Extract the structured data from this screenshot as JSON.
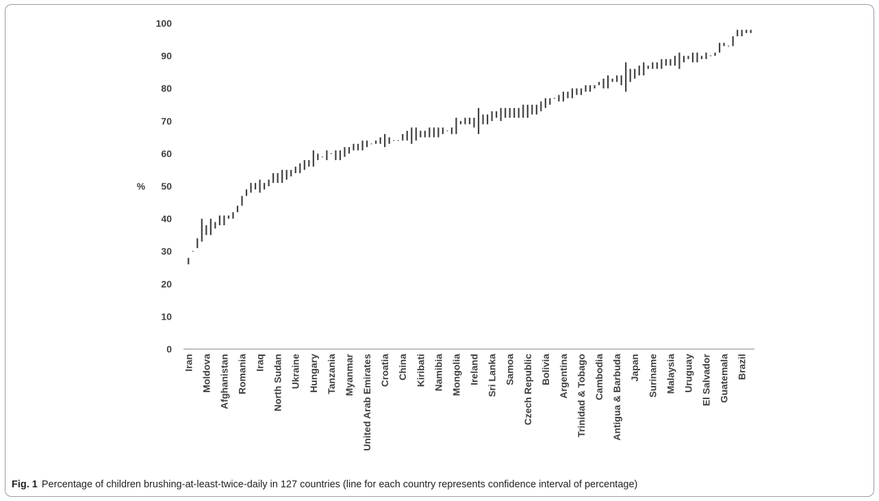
{
  "figure": {
    "label": "Fig. 1",
    "caption": "Percentage of children brushing-at-least-twice-daily in 127 countries (line for each country represents confidence interval of percentage)"
  },
  "colors": {
    "bar": "#404040",
    "text": "#404040"
  },
  "chart_data": {
    "type": "bar",
    "subtype": "range (confidence interval per country)",
    "xlabel": "",
    "ylabel": "%",
    "ylim": [
      0,
      100
    ],
    "yticks": [
      0,
      10,
      20,
      30,
      40,
      50,
      60,
      70,
      80,
      90,
      100
    ],
    "grid": false,
    "legend": "none",
    "n_countries": 127,
    "label_every": 4,
    "x_labels": [
      "Iran",
      "Moldova",
      "Afghanistan",
      "Romania",
      "Iraq",
      "North Sudan",
      "Ukraine",
      "Hungary",
      "Tanzania",
      "Myanmar",
      "United Arab Emirates",
      "Croatia",
      "China",
      "Kiribati",
      "Namibia",
      "Mongolia",
      "Ireland",
      "Sri Lanka",
      "Samoa",
      "Czech Republic",
      "Bolivia",
      "Argentina",
      "Trinidad & Tobago",
      "Cambodia",
      "Antigua & Barbuda",
      "Japan",
      "Suriname",
      "Malaysia",
      "Uruguay",
      "El Salvador",
      "Guatemala",
      "Brazil"
    ],
    "intervals": [
      [
        26,
        28
      ],
      [
        30,
        30
      ],
      [
        31,
        34
      ],
      [
        33,
        40
      ],
      [
        35,
        38
      ],
      [
        35,
        40
      ],
      [
        37,
        39
      ],
      [
        38,
        41
      ],
      [
        38,
        41
      ],
      [
        40,
        41
      ],
      [
        40,
        42
      ],
      [
        42,
        44
      ],
      [
        44,
        47
      ],
      [
        47,
        49
      ],
      [
        48,
        51
      ],
      [
        49,
        51
      ],
      [
        48,
        52
      ],
      [
        49,
        51
      ],
      [
        50,
        52
      ],
      [
        51,
        54
      ],
      [
        51,
        54
      ],
      [
        51,
        55
      ],
      [
        52,
        55
      ],
      [
        53,
        55
      ],
      [
        54,
        56
      ],
      [
        54,
        57
      ],
      [
        55,
        58
      ],
      [
        56,
        58
      ],
      [
        56,
        61
      ],
      [
        58,
        60
      ],
      [
        59,
        59
      ],
      [
        58,
        61
      ],
      [
        60,
        60
      ],
      [
        58,
        61
      ],
      [
        58,
        61
      ],
      [
        59,
        62
      ],
      [
        60,
        62
      ],
      [
        61,
        63
      ],
      [
        61,
        63
      ],
      [
        61,
        64
      ],
      [
        62,
        64
      ],
      [
        63,
        63
      ],
      [
        63,
        64
      ],
      [
        63,
        65
      ],
      [
        62,
        66
      ],
      [
        63,
        65
      ],
      [
        64,
        64
      ],
      [
        64,
        64
      ],
      [
        64,
        66
      ],
      [
        64,
        67
      ],
      [
        63,
        68
      ],
      [
        64,
        68
      ],
      [
        65,
        67
      ],
      [
        65,
        67
      ],
      [
        65,
        68
      ],
      [
        65,
        68
      ],
      [
        65,
        68
      ],
      [
        66,
        68
      ],
      [
        67,
        67
      ],
      [
        66,
        68
      ],
      [
        66,
        71
      ],
      [
        69,
        70
      ],
      [
        69,
        71
      ],
      [
        69,
        71
      ],
      [
        68,
        71
      ],
      [
        66,
        74
      ],
      [
        69,
        72
      ],
      [
        69,
        72
      ],
      [
        70,
        73
      ],
      [
        71,
        73
      ],
      [
        70,
        74
      ],
      [
        71,
        74
      ],
      [
        71,
        74
      ],
      [
        71,
        74
      ],
      [
        71,
        74
      ],
      [
        71,
        75
      ],
      [
        71,
        75
      ],
      [
        72,
        75
      ],
      [
        72,
        75
      ],
      [
        73,
        76
      ],
      [
        74,
        77
      ],
      [
        75,
        77
      ],
      [
        77,
        77
      ],
      [
        76,
        78
      ],
      [
        76,
        79
      ],
      [
        77,
        79
      ],
      [
        77,
        80
      ],
      [
        78,
        80
      ],
      [
        78,
        80
      ],
      [
        79,
        81
      ],
      [
        79,
        81
      ],
      [
        80,
        81
      ],
      [
        81,
        82
      ],
      [
        80,
        83
      ],
      [
        80,
        84
      ],
      [
        82,
        83
      ],
      [
        82,
        84
      ],
      [
        81,
        84
      ],
      [
        79,
        88
      ],
      [
        82,
        86
      ],
      [
        83,
        86
      ],
      [
        84,
        87
      ],
      [
        84,
        88
      ],
      [
        86,
        87
      ],
      [
        86,
        88
      ],
      [
        86,
        88
      ],
      [
        86,
        89
      ],
      [
        87,
        89
      ],
      [
        87,
        89
      ],
      [
        87,
        90
      ],
      [
        86,
        91
      ],
      [
        88,
        90
      ],
      [
        89,
        90
      ],
      [
        88,
        91
      ],
      [
        88,
        91
      ],
      [
        89,
        90
      ],
      [
        89,
        91
      ],
      [
        90,
        90
      ],
      [
        90,
        91
      ],
      [
        91,
        94
      ],
      [
        93,
        94
      ],
      [
        93,
        93
      ],
      [
        93,
        96
      ],
      [
        96,
        98
      ],
      [
        96,
        98
      ],
      [
        97,
        98
      ],
      [
        97,
        98
      ]
    ]
  }
}
